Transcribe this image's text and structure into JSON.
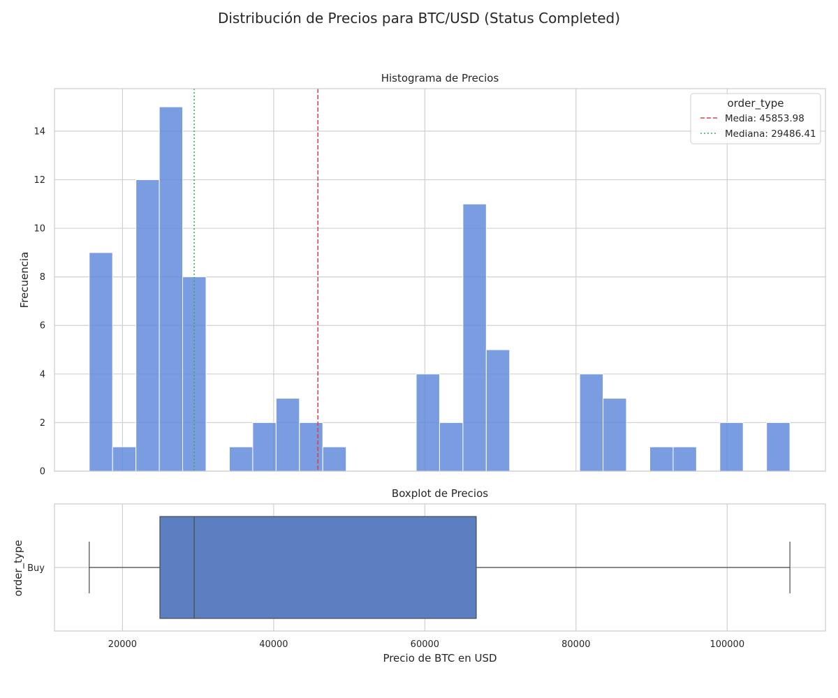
{
  "suptitle": "Distribución de Precios para BTC/USD (Status Completed)",
  "colors": {
    "bar": "#5b87d9",
    "box": "#5b7fc1",
    "mean_line": "#d9434f",
    "median_line": "#3aaa5a",
    "grid": "#d0d0d0",
    "spine": "#cccccc",
    "whisker": "#4a4a4a"
  },
  "chart_data": [
    {
      "type": "histogram",
      "title": "Histograma de Precios",
      "xlabel": "",
      "ylabel": "Frecuencia",
      "xlim": [
        11000,
        113000
      ],
      "ylim": [
        0,
        15.75
      ],
      "xticks": [
        20000,
        40000,
        60000,
        80000,
        100000
      ],
      "yticks": [
        0,
        2,
        4,
        6,
        8,
        10,
        12,
        14
      ],
      "bins": [
        {
          "x0": 15600,
          "x1": 18690,
          "count": 9
        },
        {
          "x0": 18690,
          "x1": 21780,
          "count": 1
        },
        {
          "x0": 21780,
          "x1": 24870,
          "count": 12
        },
        {
          "x0": 24870,
          "x1": 27960,
          "count": 15
        },
        {
          "x0": 27960,
          "x1": 31050,
          "count": 8
        },
        {
          "x0": 31050,
          "x1": 34140,
          "count": 0
        },
        {
          "x0": 34140,
          "x1": 37230,
          "count": 1
        },
        {
          "x0": 37230,
          "x1": 40320,
          "count": 2
        },
        {
          "x0": 40320,
          "x1": 43410,
          "count": 3
        },
        {
          "x0": 43410,
          "x1": 46500,
          "count": 2
        },
        {
          "x0": 46500,
          "x1": 49590,
          "count": 1
        },
        {
          "x0": 49590,
          "x1": 52680,
          "count": 0
        },
        {
          "x0": 52680,
          "x1": 55770,
          "count": 0
        },
        {
          "x0": 55770,
          "x1": 58860,
          "count": 0
        },
        {
          "x0": 58860,
          "x1": 61950,
          "count": 4
        },
        {
          "x0": 61950,
          "x1": 65040,
          "count": 2
        },
        {
          "x0": 65040,
          "x1": 68130,
          "count": 11
        },
        {
          "x0": 68130,
          "x1": 71220,
          "count": 5
        },
        {
          "x0": 71220,
          "x1": 74310,
          "count": 0
        },
        {
          "x0": 74310,
          "x1": 77400,
          "count": 0
        },
        {
          "x0": 77400,
          "x1": 80490,
          "count": 0
        },
        {
          "x0": 80490,
          "x1": 83580,
          "count": 4
        },
        {
          "x0": 83580,
          "x1": 86670,
          "count": 3
        },
        {
          "x0": 86670,
          "x1": 89760,
          "count": 0
        },
        {
          "x0": 89760,
          "x1": 92850,
          "count": 1
        },
        {
          "x0": 92850,
          "x1": 95940,
          "count": 1
        },
        {
          "x0": 95940,
          "x1": 99030,
          "count": 0
        },
        {
          "x0": 99030,
          "x1": 102120,
          "count": 2
        },
        {
          "x0": 102120,
          "x1": 105210,
          "count": 0
        },
        {
          "x0": 105210,
          "x1": 108300,
          "count": 2
        }
      ],
      "reference_lines": [
        {
          "label": "Media: 45853.98",
          "value": 45853.98,
          "style": "dashed"
        },
        {
          "label": "Mediana: 29486.41",
          "value": 29486.41,
          "style": "dotted"
        }
      ],
      "legend": {
        "title": "order_type",
        "placement": "top-right"
      },
      "grid": true
    },
    {
      "type": "boxplot",
      "title": "Boxplot de Precios",
      "xlabel": "Precio de BTC en USD",
      "ylabel": "order_type",
      "xlim": [
        11000,
        113000
      ],
      "xticks": [
        20000,
        40000,
        60000,
        80000,
        100000
      ],
      "categories": [
        "Buy"
      ],
      "boxes": [
        {
          "category": "Buy",
          "whisker_low": 15600,
          "q1": 24950,
          "median": 29486.41,
          "q3": 66800,
          "whisker_high": 108300
        }
      ],
      "grid": true
    }
  ]
}
